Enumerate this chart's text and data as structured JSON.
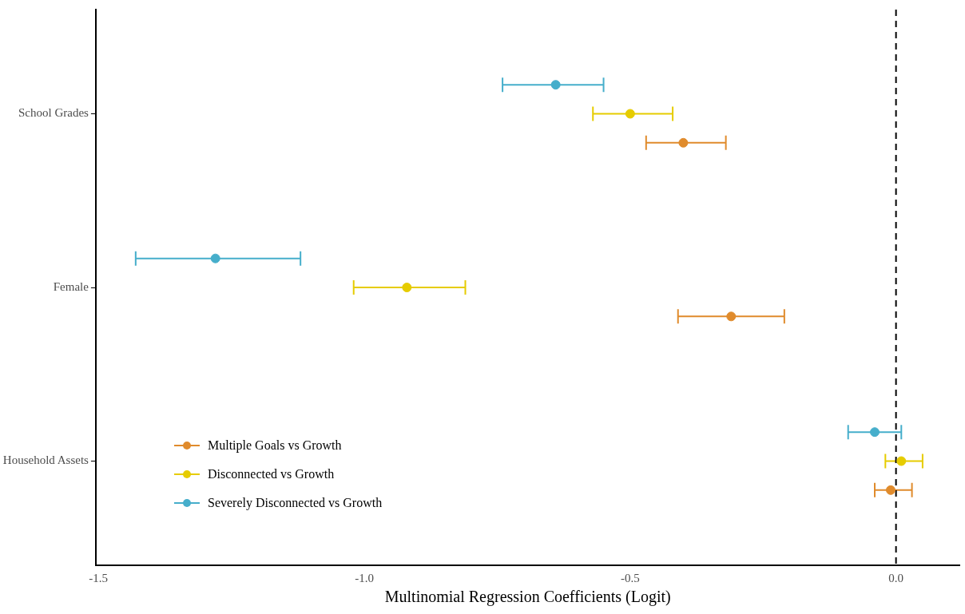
{
  "chart_data": {
    "type": "scatter",
    "orientation": "horizontal",
    "xlabel": "Multinomial Regression Coefficients (Logit)",
    "categories": [
      "School Grades",
      "Female",
      "Household Assets"
    ],
    "series": [
      {
        "name": "Multiple Goals vs Growth",
        "color": "#e08b2c",
        "values": [
          -0.4,
          -0.31,
          -0.01
        ],
        "errors": [
          [
            -0.47,
            -0.32
          ],
          [
            -0.41,
            -0.21
          ],
          [
            -0.04,
            0.03
          ]
        ]
      },
      {
        "name": "Disconnected vs Growth",
        "color": "#e6cc00",
        "values": [
          -0.5,
          -0.92,
          0.01
        ],
        "errors": [
          [
            -0.57,
            -0.42
          ],
          [
            -1.02,
            -0.81
          ],
          [
            -0.02,
            0.05
          ]
        ]
      },
      {
        "name": "Severely Disconnected vs Growth",
        "color": "#46aecb",
        "values": [
          -0.64,
          -1.28,
          -0.04
        ],
        "errors": [
          [
            -0.74,
            -0.55
          ],
          [
            -1.43,
            -1.12
          ],
          [
            -0.09,
            0.01
          ]
        ]
      }
    ],
    "xlim": [
      -1.505,
      0.12
    ],
    "xticks": [
      {
        "value": -1.5,
        "label": "-1.5"
      },
      {
        "value": -1.0,
        "label": "-1.0"
      },
      {
        "value": -0.5,
        "label": "-0.5"
      },
      {
        "value": 0,
        "label": "0.0"
      }
    ],
    "ref_lines": [
      {
        "axis": "x",
        "value": 0,
        "color": "#000000",
        "line_style": "dashed"
      }
    ],
    "grid": false,
    "legend": "bottom left",
    "marker": "circle"
  }
}
